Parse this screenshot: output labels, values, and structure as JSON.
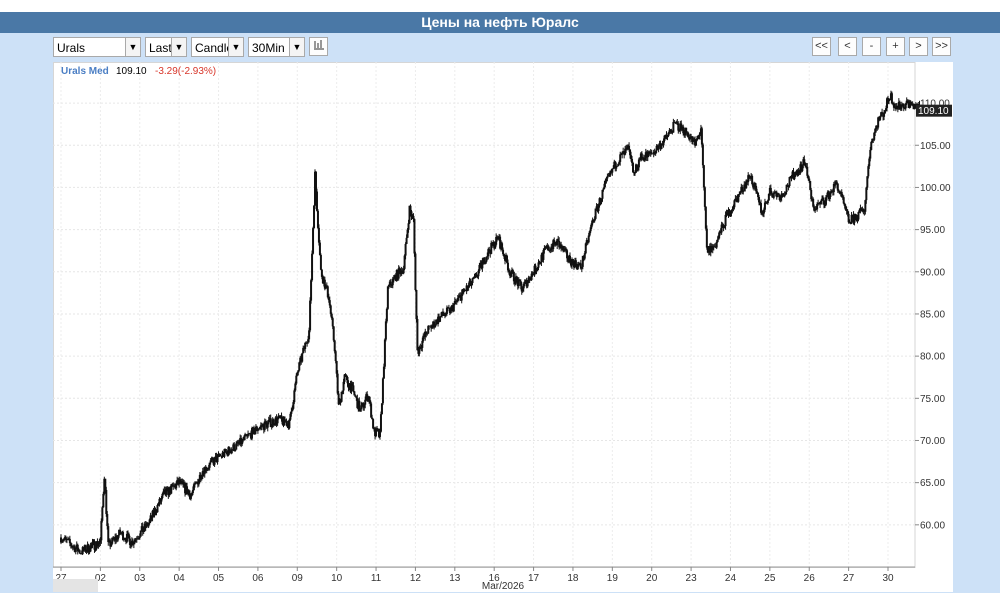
{
  "header": {
    "title": "Цены на нефть Юралс"
  },
  "toolbar": {
    "symbol": "Urals",
    "field": "Last",
    "style": "Candle",
    "interval": "30Min",
    "chart_type_icon": "bar-chart-icon",
    "nav": {
      "first": "<<",
      "prev": "<",
      "zoom_out": "-",
      "zoom_in": "+",
      "next": ">",
      "last": ">>"
    }
  },
  "legend": {
    "name": "Urals Med",
    "last": "109.10",
    "change": "-3.29(-2.93%)"
  },
  "colors": {
    "title_bg": "#4a78a6",
    "panel_bg": "#cde1f7",
    "name": "#4a7ec4",
    "change": "#d8362a",
    "candle": "#111111",
    "price_tag_bg": "#222222"
  },
  "chart_data": {
    "type": "candlestick",
    "title": "Цены на нефть Юралс",
    "series_name": "Urals Med",
    "last_price": 109.1,
    "last_price_label": "109.10",
    "change": "-3.29(-2.93%)",
    "y_axis_position": "right",
    "ylim": [
      55,
      112.5
    ],
    "y_ticks": [
      60,
      65,
      70,
      75,
      80,
      85,
      90,
      95,
      100,
      105,
      110
    ],
    "y_tick_labels": [
      "60.00",
      "65.00",
      "70.00",
      "75.00",
      "80.00",
      "85.00",
      "90.00",
      "95.00",
      "100.00",
      "105.00",
      "110.00"
    ],
    "x_ticks": [
      "27",
      "02",
      "03",
      "04",
      "05",
      "06",
      "09",
      "10",
      "11",
      "12",
      "13",
      "16",
      "17",
      "18",
      "19",
      "20",
      "23",
      "24",
      "25",
      "26",
      "27",
      "30"
    ],
    "x_label": "Mar/2026",
    "grid": true,
    "points": [
      [
        0,
        58.5
      ],
      [
        0.5,
        56.8
      ],
      [
        1.0,
        58.0
      ],
      [
        1.1,
        66.0
      ],
      [
        1.2,
        57.5
      ],
      [
        1.5,
        59.0
      ],
      [
        1.8,
        58.0
      ],
      [
        2.2,
        60.0
      ],
      [
        2.6,
        63.5
      ],
      [
        3.0,
        65.0
      ],
      [
        3.3,
        63.5
      ],
      [
        3.6,
        66.5
      ],
      [
        4.0,
        68.0
      ],
      [
        4.5,
        69.5
      ],
      [
        5.0,
        71.5
      ],
      [
        5.5,
        72.5
      ],
      [
        5.8,
        72.0
      ],
      [
        6.0,
        78.0
      ],
      [
        6.3,
        83.0
      ],
      [
        6.45,
        101.5
      ],
      [
        6.6,
        90.0
      ],
      [
        6.8,
        87.0
      ],
      [
        6.95,
        81.0
      ],
      [
        7.05,
        74.0
      ],
      [
        7.2,
        77.5
      ],
      [
        7.4,
        76.0
      ],
      [
        7.6,
        73.5
      ],
      [
        7.8,
        75.5
      ],
      [
        7.95,
        71.0
      ],
      [
        8.1,
        70.5
      ],
      [
        8.3,
        88.0
      ],
      [
        8.5,
        89.5
      ],
      [
        8.7,
        90.5
      ],
      [
        8.85,
        97.5
      ],
      [
        8.95,
        96.0
      ],
      [
        9.05,
        80.5
      ],
      [
        9.3,
        83.0
      ],
      [
        9.6,
        84.5
      ],
      [
        9.9,
        85.5
      ],
      [
        10.2,
        87.5
      ],
      [
        10.5,
        89.0
      ],
      [
        10.8,
        92.0
      ],
      [
        11.1,
        94.0
      ],
      [
        11.4,
        90.0
      ],
      [
        11.7,
        88.0
      ],
      [
        12.0,
        90.0
      ],
      [
        12.3,
        92.5
      ],
      [
        12.6,
        93.5
      ],
      [
        12.9,
        91.5
      ],
      [
        13.2,
        90.5
      ],
      [
        13.5,
        96.0
      ],
      [
        13.8,
        100.0
      ],
      [
        14.1,
        103.0
      ],
      [
        14.4,
        104.5
      ],
      [
        14.55,
        101.5
      ],
      [
        14.7,
        103.5
      ],
      [
        15.0,
        104.0
      ],
      [
        15.3,
        105.5
      ],
      [
        15.6,
        107.5
      ],
      [
        15.9,
        106.5
      ],
      [
        16.1,
        105.0
      ],
      [
        16.25,
        107.0
      ],
      [
        16.4,
        92.5
      ],
      [
        16.6,
        93.0
      ],
      [
        16.9,
        96.5
      ],
      [
        17.2,
        99.0
      ],
      [
        17.5,
        101.5
      ],
      [
        17.8,
        97.0
      ],
      [
        18.0,
        99.5
      ],
      [
        18.3,
        99.0
      ],
      [
        18.6,
        101.5
      ],
      [
        18.9,
        103.0
      ],
      [
        19.1,
        97.5
      ],
      [
        19.4,
        98.5
      ],
      [
        19.7,
        100.5
      ],
      [
        20.0,
        96.0
      ],
      [
        20.2,
        96.5
      ],
      [
        20.4,
        97.5
      ],
      [
        20.55,
        105.0
      ],
      [
        20.75,
        108.0
      ],
      [
        20.9,
        109.0
      ],
      [
        21.05,
        111.0
      ],
      [
        21.2,
        109.5
      ],
      [
        21.5,
        110.0
      ],
      [
        21.8,
        109.3
      ],
      [
        22.0,
        109.1
      ]
    ]
  }
}
